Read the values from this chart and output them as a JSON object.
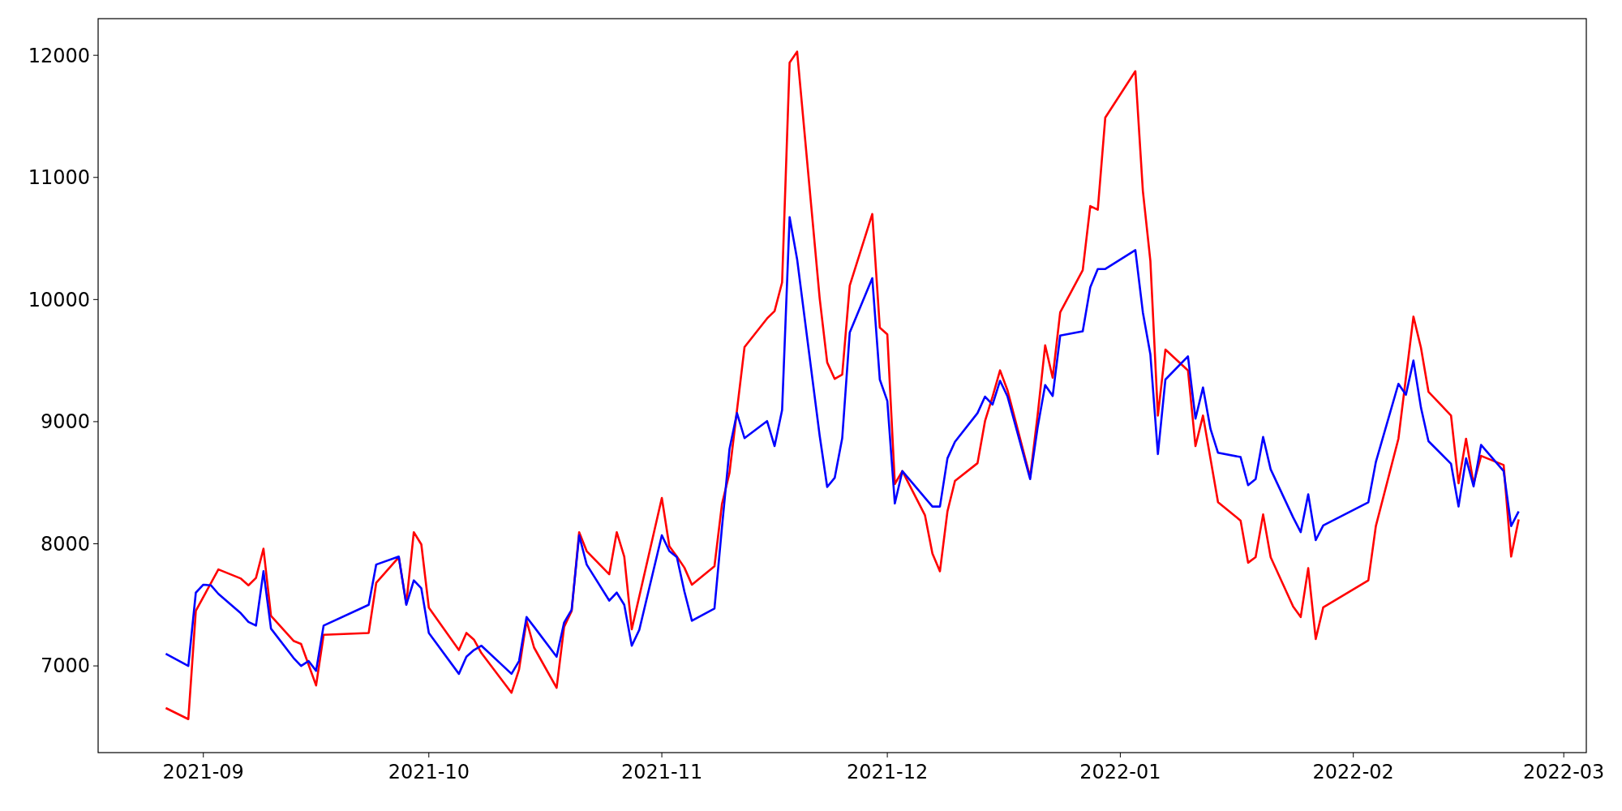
{
  "chart_data": {
    "type": "line",
    "xlim": [
      "2021-08-18",
      "2022-03-04"
    ],
    "ylim": [
      6290,
      12300
    ],
    "xticks": [
      {
        "value": "2021-09-01",
        "label": "2021-09"
      },
      {
        "value": "2021-10-01",
        "label": "2021-10"
      },
      {
        "value": "2021-11-01",
        "label": "2021-11"
      },
      {
        "value": "2021-12-01",
        "label": "2021-12"
      },
      {
        "value": "2022-01-01",
        "label": "2022-01"
      },
      {
        "value": "2022-02-01",
        "label": "2022-02"
      },
      {
        "value": "2022-03-01",
        "label": "2022-03"
      }
    ],
    "yticks": [
      7000,
      8000,
      9000,
      10000,
      11000,
      12000
    ],
    "grid": false,
    "marker": "none",
    "line_style": "solid",
    "series": [
      {
        "color": "#ff0000",
        "x": [
          "2021-08-27",
          "2021-08-30",
          "2021-08-31",
          "2021-09-03",
          "2021-09-06",
          "2021-09-07",
          "2021-09-08",
          "2021-09-09",
          "2021-09-10",
          "2021-09-13",
          "2021-09-14",
          "2021-09-16",
          "2021-09-17",
          "2021-09-23",
          "2021-09-24",
          "2021-09-27",
          "2021-09-28",
          "2021-09-29",
          "2021-09-30",
          "2021-10-01",
          "2021-10-05",
          "2021-10-06",
          "2021-10-07",
          "2021-10-08",
          "2021-10-12",
          "2021-10-13",
          "2021-10-14",
          "2021-10-15",
          "2021-10-18",
          "2021-10-19",
          "2021-10-20",
          "2021-10-21",
          "2021-10-22",
          "2021-10-25",
          "2021-10-26",
          "2021-10-27",
          "2021-10-28",
          "2021-11-01",
          "2021-11-02",
          "2021-11-03",
          "2021-11-04",
          "2021-11-05",
          "2021-11-08",
          "2021-11-09",
          "2021-11-10",
          "2021-11-12",
          "2021-11-15",
          "2021-11-16",
          "2021-11-17",
          "2021-11-18",
          "2021-11-19",
          "2021-11-22",
          "2021-11-23",
          "2021-11-24",
          "2021-11-25",
          "2021-11-26",
          "2021-11-29",
          "2021-11-30",
          "2021-12-01",
          "2021-12-02",
          "2021-12-03",
          "2021-12-06",
          "2021-12-07",
          "2021-12-08",
          "2021-12-09",
          "2021-12-10",
          "2021-12-13",
          "2021-12-14",
          "2021-12-15",
          "2021-12-16",
          "2021-12-17",
          "2021-12-20",
          "2021-12-21",
          "2021-12-22",
          "2021-12-23",
          "2021-12-24",
          "2021-12-27",
          "2021-12-28",
          "2021-12-29",
          "2021-12-30",
          "2022-01-03",
          "2022-01-04",
          "2022-01-05",
          "2022-01-06",
          "2022-01-07",
          "2022-01-10",
          "2022-01-11",
          "2022-01-12",
          "2022-01-14",
          "2022-01-17",
          "2022-01-18",
          "2022-01-19",
          "2022-01-20",
          "2022-01-21",
          "2022-01-24",
          "2022-01-25",
          "2022-01-26",
          "2022-01-27",
          "2022-01-28",
          "2022-02-03",
          "2022-02-04",
          "2022-02-07",
          "2022-02-09",
          "2022-02-10",
          "2022-02-11",
          "2022-02-14",
          "2022-02-15",
          "2022-02-16",
          "2022-02-17",
          "2022-02-18",
          "2022-02-21",
          "2022-02-22",
          "2022-02-23"
        ],
        "values": [
          6655,
          6564,
          7452,
          7790,
          7715,
          7660,
          7720,
          7960,
          7410,
          7205,
          7180,
          6840,
          7255,
          7270,
          7680,
          7890,
          7510,
          8095,
          7995,
          7477,
          7130,
          7270,
          7215,
          7105,
          6780,
          6970,
          7370,
          7150,
          6820,
          7320,
          7450,
          8095,
          7940,
          7750,
          8095,
          7895,
          7300,
          8375,
          7980,
          7895,
          7805,
          7665,
          7815,
          8325,
          8580,
          9610,
          9845,
          9905,
          10140,
          11940,
          12030,
          10010,
          9485,
          9350,
          9385,
          10115,
          10700,
          9770,
          9715,
          8490,
          8595,
          8235,
          7920,
          7775,
          8265,
          8515,
          8660,
          9005,
          9205,
          9420,
          9255,
          8545,
          9055,
          9625,
          9360,
          9895,
          10240,
          10765,
          10735,
          11490,
          11870,
          10890,
          10315,
          9050,
          9590,
          9420,
          8800,
          9050,
          8340,
          8190,
          7845,
          7890,
          8240,
          7890,
          7485,
          7400,
          7800,
          7220,
          7480,
          7700,
          8145,
          8860,
          9860,
          9605,
          9245,
          9050,
          8495,
          8860,
          8490,
          8720,
          8645,
          7895,
          8200
        ]
      },
      {
        "color": "#0000ff",
        "x": [
          "2021-08-27",
          "2021-08-30",
          "2021-08-31",
          "2021-09-01",
          "2021-09-02",
          "2021-09-03",
          "2021-09-06",
          "2021-09-07",
          "2021-09-08",
          "2021-09-09",
          "2021-09-10",
          "2021-09-13",
          "2021-09-14",
          "2021-09-15",
          "2021-09-16",
          "2021-09-17",
          "2021-09-23",
          "2021-09-24",
          "2021-09-27",
          "2021-09-28",
          "2021-09-29",
          "2021-09-30",
          "2021-10-01",
          "2021-10-05",
          "2021-10-06",
          "2021-10-07",
          "2021-10-08",
          "2021-10-12",
          "2021-10-13",
          "2021-10-14",
          "2021-10-15",
          "2021-10-18",
          "2021-10-19",
          "2021-10-20",
          "2021-10-21",
          "2021-10-22",
          "2021-10-25",
          "2021-10-26",
          "2021-10-27",
          "2021-10-28",
          "2021-10-29",
          "2021-11-01",
          "2021-11-02",
          "2021-11-03",
          "2021-11-04",
          "2021-11-05",
          "2021-11-08",
          "2021-11-09",
          "2021-11-10",
          "2021-11-11",
          "2021-11-12",
          "2021-11-15",
          "2021-11-16",
          "2021-11-17",
          "2021-11-18",
          "2021-11-19",
          "2021-11-22",
          "2021-11-23",
          "2021-11-24",
          "2021-11-25",
          "2021-11-26",
          "2021-11-29",
          "2021-11-30",
          "2021-12-01",
          "2021-12-02",
          "2021-12-03",
          "2021-12-07",
          "2021-12-08",
          "2021-12-09",
          "2021-12-10",
          "2021-12-13",
          "2021-12-14",
          "2021-12-15",
          "2021-12-16",
          "2021-12-17",
          "2021-12-20",
          "2021-12-21",
          "2021-12-22",
          "2021-12-23",
          "2021-12-24",
          "2021-12-27",
          "2021-12-28",
          "2021-12-29",
          "2021-12-30",
          "2022-01-03",
          "2022-01-04",
          "2022-01-05",
          "2022-01-06",
          "2022-01-07",
          "2022-01-10",
          "2022-01-11",
          "2022-01-12",
          "2022-01-13",
          "2022-01-14",
          "2022-01-17",
          "2022-01-18",
          "2022-01-19",
          "2022-01-20",
          "2022-01-21",
          "2022-01-24",
          "2022-01-25",
          "2022-01-26",
          "2022-01-27",
          "2022-01-28",
          "2022-02-03",
          "2022-02-04",
          "2022-02-07",
          "2022-02-08",
          "2022-02-09",
          "2022-02-10",
          "2022-02-11",
          "2022-02-14",
          "2022-02-15",
          "2022-02-16",
          "2022-02-17",
          "2022-02-18",
          "2022-02-21",
          "2022-02-22",
          "2022-02-23"
        ],
        "values": [
          7100,
          7000,
          7600,
          7665,
          7660,
          7590,
          7430,
          7360,
          7330,
          7775,
          7305,
          7065,
          7000,
          7040,
          6960,
          7330,
          7500,
          7830,
          7895,
          7500,
          7700,
          7635,
          7270,
          6935,
          7075,
          7130,
          7165,
          6935,
          7040,
          7400,
          7320,
          7075,
          7355,
          7460,
          8070,
          7830,
          7535,
          7600,
          7500,
          7165,
          7295,
          8070,
          7940,
          7890,
          7610,
          7370,
          7470,
          8135,
          8775,
          9070,
          8865,
          9005,
          8800,
          9095,
          10675,
          10330,
          8885,
          8465,
          8540,
          8865,
          9730,
          10175,
          9345,
          9170,
          8330,
          8595,
          8305,
          8305,
          8700,
          8835,
          9070,
          9205,
          9140,
          9335,
          9205,
          8530,
          8955,
          9300,
          9210,
          9705,
          9740,
          10100,
          10250,
          10250,
          10405,
          9895,
          9550,
          8735,
          9345,
          9535,
          9025,
          9280,
          8940,
          8745,
          8710,
          8480,
          8530,
          8875,
          8610,
          8215,
          8095,
          8405,
          8030,
          8150,
          8340,
          8670,
          9310,
          9220,
          9500,
          9115,
          8840,
          8655,
          8305,
          8700,
          8470,
          8810,
          8595,
          8145,
          8265
        ]
      }
    ]
  }
}
